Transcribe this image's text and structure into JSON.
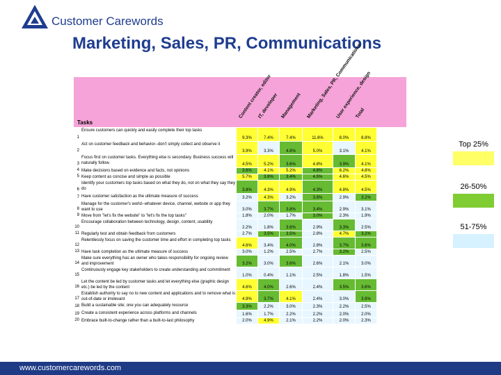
{
  "header": {
    "brand": "Customer Carewords",
    "title": "Marketing, Sales, PR, Communications"
  },
  "table": {
    "tasks_label": "Tasks",
    "columns": [
      "Content creator, editor",
      "IT, developer",
      "Management",
      "Marketing, Sales, PR, Communications",
      "User experience, design",
      "Total"
    ],
    "rows": [
      {
        "n": "1",
        "text": "Ensure customers can quickly and easily complete their top tasks",
        "v": [
          "9.3%",
          "7.4%",
          "7.4%",
          "11.6%",
          "8.0%",
          "8.8%"
        ],
        "c": [
          "Y",
          "Y",
          "Y",
          "Y",
          "Y",
          "Y"
        ]
      },
      {
        "n": "2",
        "text": "Act on customer feedback and behavior--don't simply collect and observe it",
        "v": [
          "3.9%",
          "3.3%",
          "4.8%",
          "5.0%",
          "3.1%",
          "4.1%"
        ],
        "c": [
          "Y",
          "W",
          "G",
          "Y",
          "W",
          "Y"
        ]
      },
      {
        "n": "3",
        "text": "Focus first on customer tasks. Everything else is secondary. Business success will naturally follow.",
        "v": [
          "4.5%",
          "5.2%",
          "3.6%",
          "4.8%",
          "3.9%",
          "4.1%"
        ],
        "c": [
          "Y",
          "Y",
          "G",
          "Y",
          "G",
          "Y"
        ]
      },
      {
        "n": "4",
        "text": "Make decisions based on evidence and facts, not opinions",
        "v": [
          "3.6%",
          "4.1%",
          "5.2%",
          "4.6%",
          "6.2%",
          "4.8%"
        ],
        "c": [
          "G",
          "Y",
          "Y",
          "G",
          "Y",
          "Y"
        ]
      },
      {
        "n": "5",
        "text": "Keep content as concise and simple as possible",
        "v": [
          "5.7%",
          "3.8%",
          "3.4%",
          "4.5%",
          "4.6%",
          "4.5%"
        ],
        "c": [
          "Y",
          "G",
          "G",
          "G",
          "Y",
          "Y"
        ]
      },
      {
        "n": "6",
        "text": "Identify your customers top tasks based on what they do, not on what they say they do",
        "v": [
          "3.8%",
          "4.3%",
          "4.9%",
          "4.3%",
          "4.8%",
          "4.5%"
        ],
        "c": [
          "G",
          "Y",
          "Y",
          "G",
          "Y",
          "Y"
        ]
      },
      {
        "n": "7",
        "text": "Have customer satisfaction as the ultimate measure of success",
        "v": [
          "3.2%",
          "4.3%",
          "3.2%",
          "3.8%",
          "2.9%",
          "3.2%"
        ],
        "c": [
          "W",
          "Y",
          "W",
          "G",
          "W",
          "G"
        ]
      },
      {
        "n": "8",
        "text": "Manage for the customer's world--whatever device, channel, website or app they want to use",
        "v": [
          "3.0%",
          "3.7%",
          "3.8%",
          "3.4%",
          "2.9%",
          "3.1%"
        ],
        "c": [
          "W",
          "G",
          "G",
          "G",
          "W",
          "W"
        ]
      },
      {
        "n": "9",
        "text": "Move from \"let's fix the website\" to \"let's fix the top tasks\"",
        "v": [
          "1.8%",
          "2.0%",
          "1.7%",
          "3.0%",
          "2.3%",
          "1.9%"
        ],
        "c": [
          "W",
          "W",
          "W",
          "G",
          "W",
          "W"
        ]
      },
      {
        "n": "10",
        "text": "Encourage collaboration between technology, design, content, usability",
        "v": [
          "2.2%",
          "1.8%",
          "3.6%",
          "2.9%",
          "3.3%",
          "2.5%"
        ],
        "c": [
          "W",
          "W",
          "G",
          "W",
          "G",
          "W"
        ]
      },
      {
        "n": "11",
        "text": "Regularly test and obtain feedback from customers",
        "v": [
          "2.7%",
          "3.5%",
          "3.5%",
          "2.8%",
          "4.7%",
          "3.2%"
        ],
        "c": [
          "W",
          "G",
          "G",
          "W",
          "Y",
          "G"
        ]
      },
      {
        "n": "12",
        "text": "Relentlessly focus on saving the customer time and effort in completing top tasks",
        "v": [
          "4.6%",
          "3.4%",
          "4.0%",
          "2.8%",
          "3.7%",
          "3.6%"
        ],
        "c": [
          "Y",
          "W",
          "G",
          "W",
          "G",
          "G"
        ]
      },
      {
        "n": "13",
        "text": "Have task completion as the ultimate measure of success",
        "v": [
          "3.0%",
          "1.2%",
          "2.5%",
          "2.7%",
          "3.2%",
          "2.5%"
        ],
        "c": [
          "W",
          "W",
          "W",
          "W",
          "G",
          "W"
        ]
      },
      {
        "n": "14",
        "text": "Make sure everything has an owner who takes responsibility for ongoing review and improvement",
        "v": [
          "3.2%",
          "3.0%",
          "3.6%",
          "2.6%",
          "2.1%",
          "3.0%"
        ],
        "c": [
          "G",
          "W",
          "G",
          "W",
          "W",
          "W"
        ]
      },
      {
        "n": "15",
        "text": "Continuously engage key stakeholders to create understanding and commitment",
        "v": [
          "1.0%",
          "0.4%",
          "1.1%",
          "2.5%",
          "1.8%",
          "1.5%"
        ],
        "c": [
          "W",
          "W",
          "W",
          "W",
          "W",
          "W"
        ]
      },
      {
        "n": "16",
        "text": "Let the content be led by customer tasks and let everything else (graphic design etc.) be led by the content",
        "v": [
          "4.6%",
          "4.0%",
          "2.6%",
          "2.4%",
          "3.5%",
          "3.6%"
        ],
        "c": [
          "Y",
          "G",
          "W",
          "W",
          "G",
          "G"
        ]
      },
      {
        "n": "17",
        "text": "Establish authority to say no to new content and applications and to remove what is out-of-date or irrelevant",
        "v": [
          "4.9%",
          "3.7%",
          "4.1%",
          "2.4%",
          "3.0%",
          "3.9%"
        ],
        "c": [
          "Y",
          "G",
          "Y",
          "W",
          "W",
          "G"
        ]
      },
      {
        "n": "18",
        "text": "Build a sustainable site; one you can adequately resource",
        "v": [
          "3.3%",
          "2.2%",
          "3.0%",
          "2.3%",
          "2.2%",
          "2.5%"
        ],
        "c": [
          "G",
          "W",
          "W",
          "W",
          "W",
          "W"
        ]
      },
      {
        "n": "19",
        "text": "Create a consistent experience across platforms and channels",
        "v": [
          "1.6%",
          "1.7%",
          "2.2%",
          "2.2%",
          "2.0%",
          "2.0%"
        ],
        "c": [
          "W",
          "W",
          "W",
          "W",
          "W",
          "W"
        ]
      },
      {
        "n": "20",
        "text": "Embrace built-to-change rather than a built-to-last philosophy",
        "v": [
          "2.0%",
          "4.9%",
          "2.1%",
          "2.2%",
          "2.0%",
          "2.3%"
        ],
        "c": [
          "W",
          "Y",
          "W",
          "W",
          "W",
          "W"
        ]
      }
    ]
  },
  "legend": [
    {
      "label": "Top 25%",
      "color": "#ffff66"
    },
    {
      "label": "26-50%",
      "color": "#80cc33"
    },
    {
      "label": "51-75%",
      "color": "#d6f1ff"
    }
  ],
  "colors": {
    "Y": "#ffff33",
    "G": "#66bb33",
    "W": "#e8f6ff",
    "header": "#f5a3d8",
    "brand": "#1f3d8f",
    "footer": "#1f3b86"
  },
  "footer": {
    "url": "www.customercarewords.com"
  }
}
